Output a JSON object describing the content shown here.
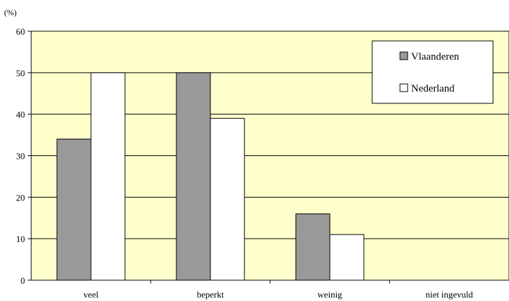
{
  "chart_data": {
    "type": "bar",
    "unit_label": "(%)",
    "categories": [
      "veel",
      "beperkt",
      "weinig",
      "niet ingevuld"
    ],
    "series": [
      {
        "name": "Vlaanderen",
        "values": [
          34,
          50,
          16,
          0
        ],
        "color": "#999999"
      },
      {
        "name": "Nederland",
        "values": [
          50,
          39,
          11,
          0
        ],
        "color": "#ffffff"
      }
    ],
    "ylim": [
      0,
      60
    ],
    "yticks": [
      0,
      10,
      20,
      30,
      40,
      50,
      60
    ],
    "grid": true,
    "legend_position": "top-right",
    "plot_background": "#ffffcc"
  }
}
